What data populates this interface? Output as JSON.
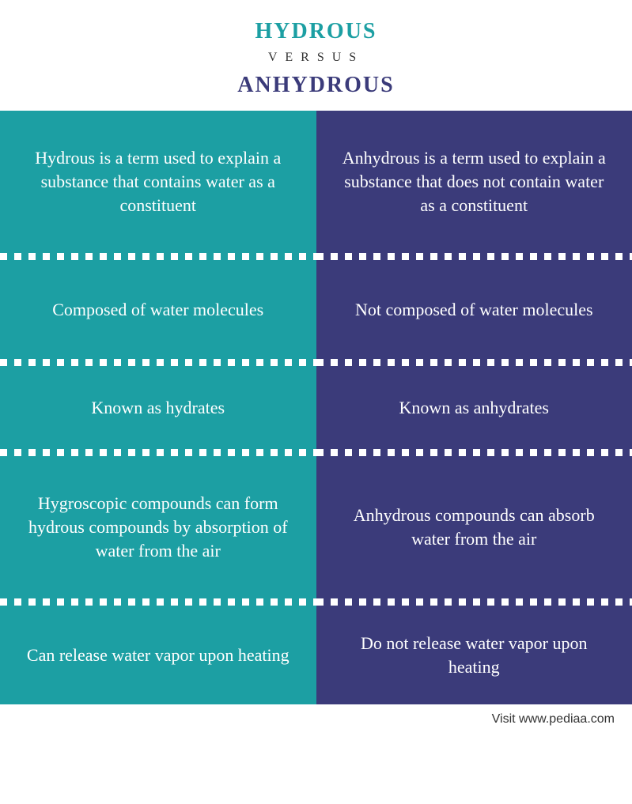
{
  "header": {
    "top": "HYDROUS",
    "middle": "VERSUS",
    "bottom": "ANHYDROUS",
    "top_color": "#1c9fa3",
    "bottom_color": "#3b3b7a"
  },
  "columns": {
    "left": {
      "bg": "#1c9fa3",
      "cells": [
        "Hydrous is a term used to explain a substance that contains water as a constituent",
        "Composed of water molecules",
        "Known as hydrates",
        "Hygroscopic compounds can form hydrous compounds by absorption of water from the air",
        "Can release water vapor upon heating"
      ]
    },
    "right": {
      "bg": "#3b3b7a",
      "cells": [
        "Anhydrous is a term used to explain a substance that does not contain water as a constituent",
        "Not composed of water molecules",
        "Known as anhydrates",
        "Anhydrous compounds can absorb water from the air",
        "Do not release water vapor upon heating"
      ]
    }
  },
  "divider": {
    "dot_color": "#ffffff",
    "dot_size": 9,
    "gap": 18
  },
  "footer": {
    "text": "Visit www.pediaa.com",
    "color": "#333333"
  },
  "cell_heights": [
    "tall",
    "medium",
    "short",
    "tall",
    "medium"
  ]
}
